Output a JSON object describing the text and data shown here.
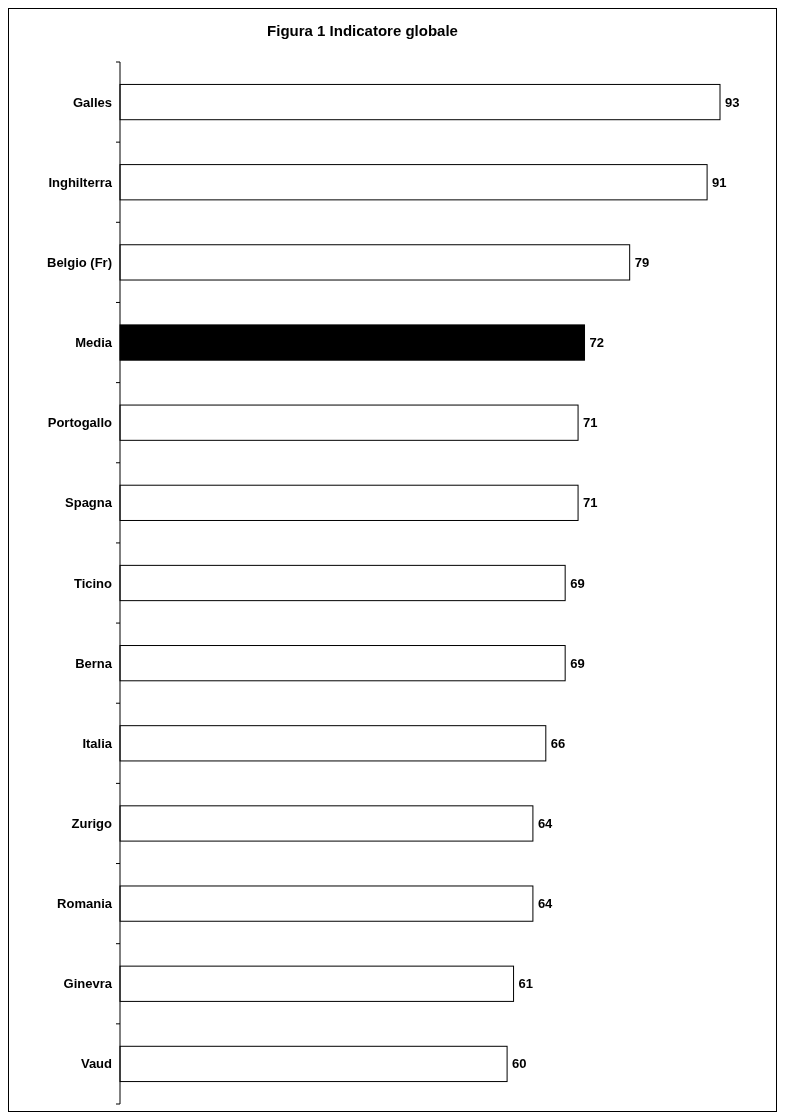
{
  "chart_data": {
    "type": "bar",
    "orientation": "horizontal",
    "title": "Figura 1 Indicatore globale",
    "categories": [
      "Galles",
      "Inghilterra",
      "Belgio (Fr)",
      "Media",
      "Portogallo",
      "Spagna",
      "Ticino",
      "Berna",
      "Italia",
      "Zurigo",
      "Romania",
      "Ginevra",
      "Vaud"
    ],
    "values": [
      93,
      91,
      79,
      72,
      71,
      71,
      69,
      69,
      66,
      64,
      64,
      61,
      60
    ],
    "colors": [
      "#ffffff",
      "#ffffff",
      "#ffffff",
      "#000000",
      "#ffffff",
      "#ffffff",
      "#ffffff",
      "#ffffff",
      "#ffffff",
      "#ffffff",
      "#ffffff",
      "#ffffff",
      "#ffffff"
    ],
    "data_labels": true
  }
}
